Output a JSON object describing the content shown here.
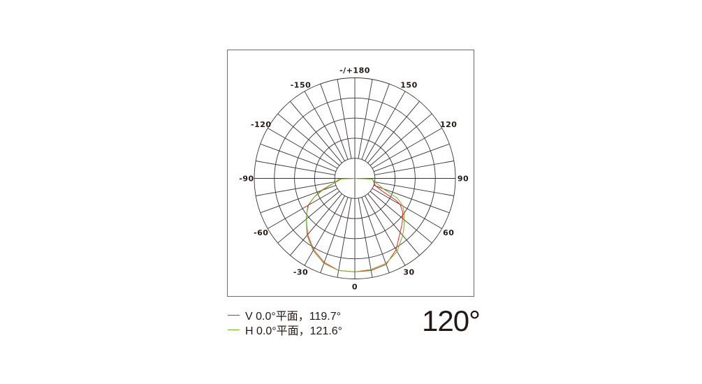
{
  "chart_data": {
    "type": "polar",
    "angle_unit": "degrees",
    "angle_zero": "bottom",
    "angle_direction": "positive to the right",
    "angle_tick_labels": [
      {
        "angle": 0,
        "label": "0"
      },
      {
        "angle": 30,
        "label": "30"
      },
      {
        "angle": 60,
        "label": "60"
      },
      {
        "angle": 90,
        "label": "90"
      },
      {
        "angle": 120,
        "label": "120"
      },
      {
        "angle": 150,
        "label": "150"
      },
      {
        "angle": 180,
        "label": "-/+180"
      },
      {
        "angle": -150,
        "label": "-150"
      },
      {
        "angle": -120,
        "label": "-120"
      },
      {
        "angle": -90,
        "label": "-90"
      },
      {
        "angle": -60,
        "label": "-60"
      },
      {
        "angle": -30,
        "label": "-30"
      }
    ],
    "spoke_step": 10,
    "ring_count": 5,
    "radial_range": [
      0,
      1
    ],
    "grid": true,
    "series": [
      {
        "name": "V 0.0°平面，119.7°",
        "color": "#e8251f",
        "angles": [
          -90,
          -88,
          -85,
          -80,
          -75,
          -70,
          -65,
          -60,
          -55,
          -50,
          -40,
          -30,
          -20,
          -10,
          0,
          10,
          20,
          30,
          40,
          45,
          50,
          55,
          60,
          62,
          65,
          70,
          75,
          80,
          85,
          88,
          90
        ],
        "values": [
          0,
          0.14,
          0.15,
          0.18,
          0.25,
          0.36,
          0.45,
          0.54,
          0.58,
          0.63,
          0.73,
          0.82,
          0.89,
          0.93,
          0.93,
          0.93,
          0.91,
          0.82,
          0.7,
          0.66,
          0.62,
          0.58,
          0.52,
          0.46,
          0.3,
          0.22,
          0.2,
          0.19,
          0.18,
          0.17,
          0
        ]
      },
      {
        "name": "H 0.0°平面，121.6°",
        "color": "#6ab42d",
        "angles": [
          -90,
          -88,
          -85,
          -80,
          -75,
          -70,
          -65,
          -60,
          -55,
          -50,
          -40,
          -30,
          -20,
          -10,
          0,
          10,
          20,
          30,
          40,
          45,
          50,
          55,
          60,
          65,
          70,
          75,
          80,
          85,
          88,
          90
        ],
        "values": [
          0,
          0.16,
          0.17,
          0.19,
          0.24,
          0.34,
          0.45,
          0.53,
          0.58,
          0.63,
          0.74,
          0.83,
          0.9,
          0.93,
          0.93,
          0.92,
          0.9,
          0.84,
          0.74,
          0.69,
          0.64,
          0.6,
          0.55,
          0.47,
          0.3,
          0.24,
          0.2,
          0.18,
          0.17,
          0
        ]
      }
    ]
  },
  "legend": [
    {
      "label": "V 0.0°平面，119.7°",
      "color": "#e8251f"
    },
    {
      "label": "H 0.0°平面，121.6°",
      "color": "#6ab42d"
    }
  ],
  "beam_angle": "120°"
}
